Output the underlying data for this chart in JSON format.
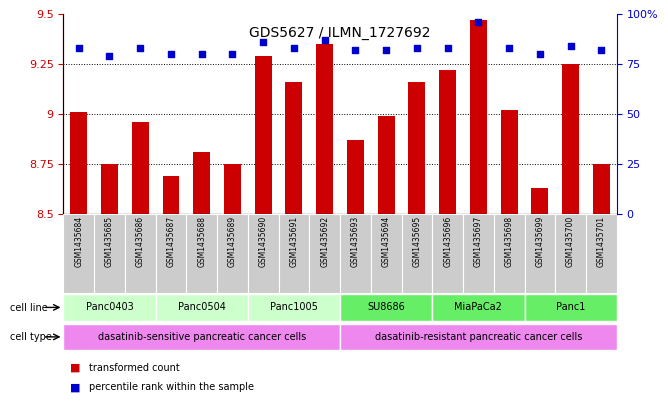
{
  "title": "GDS5627 / ILMN_1727692",
  "samples": [
    "GSM1435684",
    "GSM1435685",
    "GSM1435686",
    "GSM1435687",
    "GSM1435688",
    "GSM1435689",
    "GSM1435690",
    "GSM1435691",
    "GSM1435692",
    "GSM1435693",
    "GSM1435694",
    "GSM1435695",
    "GSM1435696",
    "GSM1435697",
    "GSM1435698",
    "GSM1435699",
    "GSM1435700",
    "GSM1435701"
  ],
  "bar_values": [
    9.01,
    8.75,
    8.96,
    8.69,
    8.81,
    8.75,
    9.29,
    9.16,
    9.35,
    8.87,
    8.99,
    9.16,
    9.22,
    9.47,
    9.02,
    8.63,
    9.25,
    8.75
  ],
  "dot_values": [
    83,
    79,
    83,
    80,
    80,
    80,
    86,
    83,
    87,
    82,
    82,
    83,
    83,
    96,
    83,
    80,
    84,
    82
  ],
  "ylim_left": [
    8.5,
    9.5
  ],
  "ylim_right": [
    0,
    100
  ],
  "yticks_left": [
    8.5,
    8.75,
    9.0,
    9.25,
    9.5
  ],
  "yticks_right": [
    0,
    25,
    50,
    75,
    100
  ],
  "grid_values": [
    8.75,
    9.0,
    9.25
  ],
  "bar_color": "#cc0000",
  "dot_color": "#0000cc",
  "cell_lines": [
    {
      "label": "Panc0403",
      "start": 0,
      "end": 2,
      "color": "#ccffcc"
    },
    {
      "label": "Panc0504",
      "start": 3,
      "end": 5,
      "color": "#ccffcc"
    },
    {
      "label": "Panc1005",
      "start": 6,
      "end": 8,
      "color": "#ccffcc"
    },
    {
      "label": "SU8686",
      "start": 9,
      "end": 11,
      "color": "#66ee66"
    },
    {
      "label": "MiaPaCa2",
      "start": 12,
      "end": 14,
      "color": "#66ee66"
    },
    {
      "label": "Panc1",
      "start": 15,
      "end": 17,
      "color": "#66ee66"
    }
  ],
  "cell_types": [
    {
      "label": "dasatinib-sensitive pancreatic cancer cells",
      "start": 0,
      "end": 8,
      "color": "#ee88ee"
    },
    {
      "label": "dasatinib-resistant pancreatic cancer cells",
      "start": 9,
      "end": 17,
      "color": "#ee88ee"
    }
  ],
  "legend_items": [
    {
      "label": "transformed count",
      "color": "#cc0000"
    },
    {
      "label": "percentile rank within the sample",
      "color": "#0000cc"
    }
  ],
  "sample_label_bg": "#cccccc",
  "bar_width": 0.55,
  "title_fontsize": 10
}
